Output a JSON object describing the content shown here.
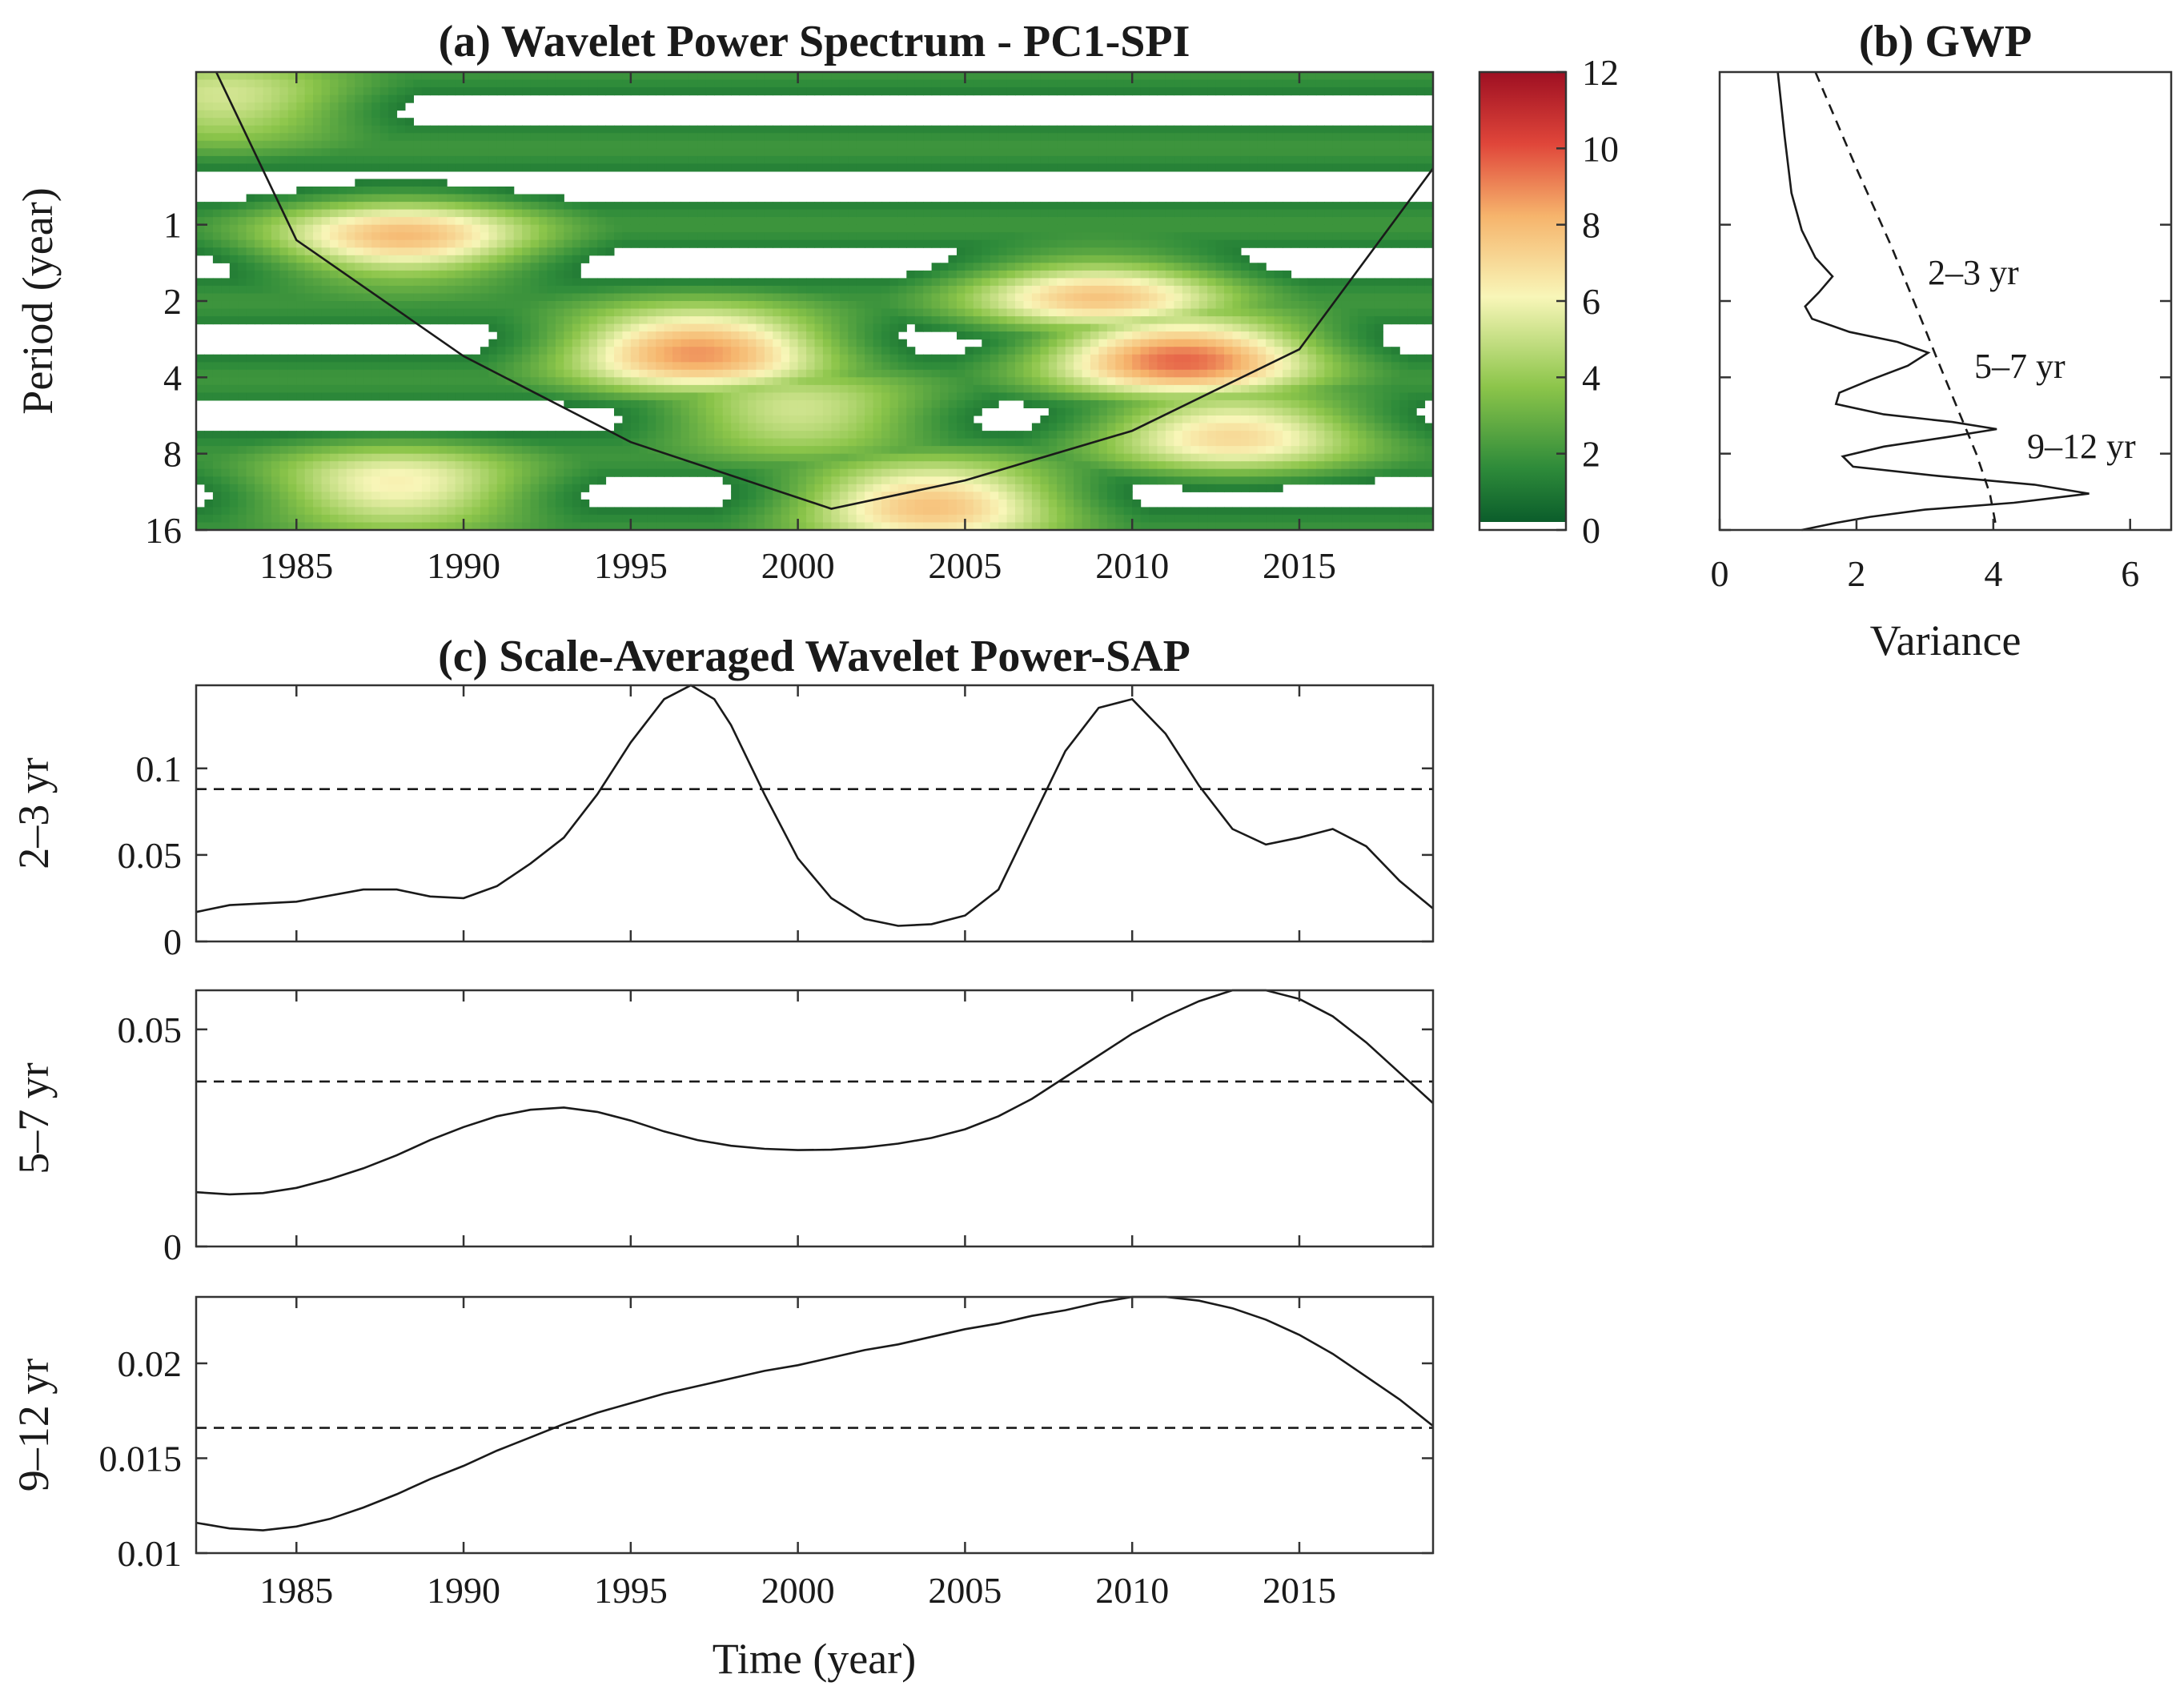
{
  "chart_data": [
    {
      "type": "heatmap",
      "title": "(a) Wavelet Power Spectrum - PC1-SPI",
      "ylabel": "Period (year)",
      "xlabel": "",
      "xlim": [
        1982,
        2019
      ],
      "xticks": [
        1985,
        1990,
        1995,
        2000,
        2005,
        2010,
        2015
      ],
      "yscale": "log2",
      "ylim": [
        0.25,
        16
      ],
      "yticks": [
        1,
        2,
        4,
        8,
        16
      ],
      "colorbar": {
        "min": 0,
        "max": 12,
        "ticks": [
          0,
          2,
          4,
          6,
          8,
          10,
          12
        ]
      },
      "cone_of_influence": [
        [
          1982.6,
          0.25
        ],
        [
          1985,
          1.15
        ],
        [
          1990,
          3.3
        ],
        [
          1995,
          7.2
        ],
        [
          2001,
          13.2
        ],
        [
          2005,
          10.2
        ],
        [
          2010,
          6.5
        ],
        [
          2015,
          3.1
        ],
        [
          2019,
          0.6
        ]
      ],
      "power_centers": [
        {
          "t": 1982.8,
          "p": 0.33,
          "power": 5
        },
        {
          "t": 1988.2,
          "p": 1.15,
          "power": 7
        },
        {
          "t": 1997,
          "p": 3.1,
          "power": 8.5
        },
        {
          "t": 2011.5,
          "p": 3.3,
          "power": 9
        },
        {
          "t": 2009,
          "p": 1.9,
          "power": 6.5
        },
        {
          "t": 2000,
          "p": 5.6,
          "power": 5
        },
        {
          "t": 2013,
          "p": 6.5,
          "power": 6.5
        },
        {
          "t": 2004,
          "p": 12.5,
          "power": 7.5
        },
        {
          "t": 1988,
          "p": 11,
          "power": 6
        }
      ]
    },
    {
      "type": "line",
      "title": "(b) GWP",
      "xlabel": "Variance",
      "xlim": [
        0,
        6.6
      ],
      "xticks": [
        0,
        2,
        4,
        6
      ],
      "ylim_period": [
        0.25,
        16
      ],
      "series": [
        {
          "name": "GWP",
          "x": [
            0.85,
            0.95,
            1.05,
            1.2,
            1.4,
            1.65,
            1.45,
            1.25,
            1.35,
            1.9,
            2.6,
            3.05,
            2.75,
            2.2,
            1.75,
            1.7,
            2.4,
            3.4,
            4.05,
            3.3,
            2.4,
            1.8,
            1.95,
            3.2,
            4.6,
            5.4,
            4.3,
            3.0,
            2.2,
            1.7,
            1.2
          ],
          "y": [
            0.25,
            0.45,
            0.75,
            1.05,
            1.35,
            1.6,
            1.85,
            2.1,
            2.35,
            2.65,
            2.9,
            3.2,
            3.6,
            4.1,
            4.6,
            5.1,
            5.6,
            6.0,
            6.4,
            6.9,
            7.5,
            8.2,
            9.0,
            9.8,
            10.6,
            11.5,
            12.5,
            13.3,
            14.2,
            15.0,
            16
          ]
        },
        {
          "name": "significance",
          "x": [
            1.4,
            2.0,
            2.5,
            2.9,
            3.2,
            3.5,
            3.75,
            3.95,
            4.05
          ],
          "y": [
            0.25,
            0.6,
            1.2,
            2.2,
            3.5,
            5.5,
            8.0,
            11.5,
            16
          ]
        }
      ],
      "annotations": [
        "2–3 yr",
        "5–7 yr",
        "9–12 yr"
      ]
    },
    {
      "type": "line",
      "title": "(c) Scale-Averaged Wavelet Power-SAP",
      "xlabel": "Time (year)",
      "xticks": [
        1985,
        1990,
        1995,
        2000,
        2005,
        2010,
        2015
      ],
      "xlim": [
        1982,
        2019
      ],
      "panels": [
        {
          "ylabel": "2–3 yr",
          "ylim": [
            0,
            0.148
          ],
          "yticks": [
            0,
            0.05,
            0.1
          ],
          "yticklabels": [
            "0",
            "0.05",
            "0.1"
          ],
          "threshold": 0.088,
          "x": [
            1982,
            1983,
            1985,
            1987,
            1988,
            1989,
            1990,
            1991,
            1992,
            1993,
            1994,
            1995,
            1996,
            1996.8,
            1997.5,
            1998,
            1999,
            2000,
            2001,
            2002,
            2003,
            2004,
            2005,
            2006,
            2007,
            2008,
            2009,
            2010,
            2011,
            2012,
            2013,
            2014,
            2015,
            2016,
            2017,
            2018,
            2019
          ],
          "values": [
            0.017,
            0.021,
            0.023,
            0.03,
            0.03,
            0.026,
            0.025,
            0.032,
            0.045,
            0.06,
            0.085,
            0.115,
            0.14,
            0.148,
            0.14,
            0.125,
            0.085,
            0.048,
            0.025,
            0.013,
            0.009,
            0.01,
            0.015,
            0.03,
            0.07,
            0.11,
            0.135,
            0.14,
            0.12,
            0.09,
            0.065,
            0.056,
            0.06,
            0.065,
            0.055,
            0.035,
            0.019
          ]
        },
        {
          "ylabel": "5–7 yr",
          "ylim": [
            0,
            0.059
          ],
          "yticks": [
            0,
            0.05
          ],
          "yticklabels": [
            "0",
            "0.05"
          ],
          "threshold": 0.038,
          "x": [
            1982,
            1983,
            1984,
            1985,
            1986,
            1987,
            1988,
            1989,
            1990,
            1991,
            1992,
            1993,
            1994,
            1995,
            1996,
            1997,
            1998,
            1999,
            2000,
            2001,
            2002,
            2003,
            2004,
            2005,
            2006,
            2007,
            2008,
            2009,
            2010,
            2011,
            2012,
            2013,
            2014,
            2015,
            2016,
            2017,
            2018,
            2019
          ],
          "values": [
            0.0125,
            0.012,
            0.0123,
            0.0135,
            0.0155,
            0.018,
            0.021,
            0.0245,
            0.0275,
            0.03,
            0.0315,
            0.032,
            0.031,
            0.029,
            0.0265,
            0.0245,
            0.0232,
            0.0225,
            0.0222,
            0.0223,
            0.0228,
            0.0237,
            0.025,
            0.027,
            0.03,
            0.034,
            0.039,
            0.044,
            0.049,
            0.053,
            0.0565,
            0.059,
            0.059,
            0.057,
            0.053,
            0.047,
            0.04,
            0.033
          ]
        },
        {
          "ylabel": "9–12 yr",
          "ylim": [
            0.01,
            0.0235
          ],
          "yticks": [
            0.01,
            0.015,
            0.02
          ],
          "yticklabels": [
            "0.01",
            "0.015",
            "0.02"
          ],
          "threshold": 0.0166,
          "x": [
            1982,
            1983,
            1984,
            1985,
            1986,
            1987,
            1988,
            1989,
            1990,
            1991,
            1992,
            1993,
            1994,
            1995,
            1996,
            1997,
            1998,
            1999,
            2000,
            2001,
            2002,
            2003,
            2004,
            2005,
            2006,
            2007,
            2008,
            2009,
            2010,
            2011,
            2012,
            2013,
            2014,
            2015,
            2016,
            2017,
            2018,
            2019
          ],
          "values": [
            0.0116,
            0.0113,
            0.0112,
            0.0114,
            0.0118,
            0.0124,
            0.0131,
            0.0139,
            0.0146,
            0.0154,
            0.0161,
            0.0168,
            0.0174,
            0.0179,
            0.0184,
            0.0188,
            0.0192,
            0.0196,
            0.0199,
            0.0203,
            0.0207,
            0.021,
            0.0214,
            0.0218,
            0.0221,
            0.0225,
            0.0228,
            0.0232,
            0.0235,
            0.0235,
            0.0233,
            0.0229,
            0.0223,
            0.0215,
            0.0205,
            0.0193,
            0.0181,
            0.0167
          ]
        }
      ]
    }
  ]
}
